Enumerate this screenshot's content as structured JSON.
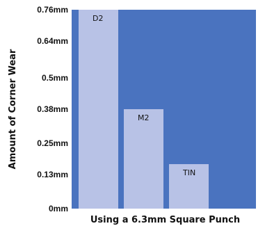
{
  "chart_data": {
    "type": "bar",
    "categories": [
      "D2",
      "M2",
      "TIN"
    ],
    "values": [
      0.76,
      0.38,
      0.17
    ],
    "xlabel": "Using a 6.3mm Square Punch",
    "ylabel": "Amount of Corner Wear",
    "ylim": [
      0,
      0.76
    ],
    "ytick_values": [
      0,
      0.13,
      0.25,
      0.38,
      0.5,
      0.64,
      0.76
    ],
    "ytick_labels": [
      "0mm",
      "0.13mm",
      "0.25mm",
      "0.38mm",
      "0.5mm",
      "0.64mm",
      "0.76mm"
    ],
    "grid": false,
    "legend": "none",
    "colors": {
      "plot_background": "#4a73bf",
      "bar_fill": "#b8c2e6"
    }
  }
}
